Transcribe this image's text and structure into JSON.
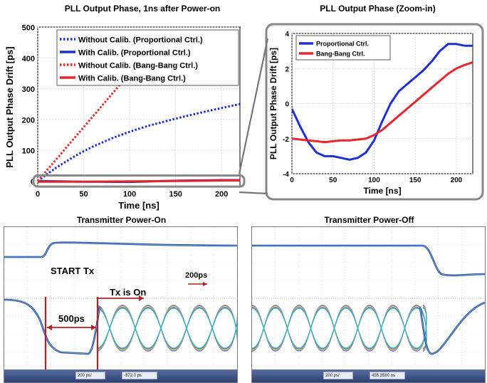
{
  "chart_data": [
    {
      "type": "line",
      "title": "PLL Output Phase, 1ns after Power-on",
      "xlabel": "Time [ns]",
      "ylabel": "PLL Output Phase Drift [ps]",
      "xlim": [
        0,
        220
      ],
      "ylim": [
        -20,
        500
      ],
      "xticks": [
        0,
        50,
        100,
        150,
        200
      ],
      "yticks": [
        0,
        100,
        200,
        300,
        400,
        500
      ],
      "grid": true,
      "legend": "top-left",
      "series": [
        {
          "name": "Without Calib. (Proportional Ctrl.)",
          "color": "#1f2fd6",
          "style": "dotted",
          "x": [
            0,
            10,
            20,
            30,
            40,
            50,
            60,
            80,
            100,
            120,
            140,
            160,
            180,
            200,
            220
          ],
          "y": [
            0,
            22,
            43,
            62,
            80,
            97,
            112,
            138,
            160,
            179,
            195,
            210,
            224,
            237,
            250
          ]
        },
        {
          "name": "With Calib. (Proportional Ctrl.)",
          "color": "#1f2fd6",
          "style": "solid",
          "x": [
            0,
            50,
            100,
            150,
            200,
            220
          ],
          "y": [
            0,
            -2,
            -3,
            1,
            3,
            3
          ]
        },
        {
          "name": "Without Calib. (Bang-Bang Ctrl.)",
          "color": "#e8262a",
          "style": "dotted",
          "x": [
            0,
            20,
            40,
            60,
            80,
            100,
            120,
            130
          ],
          "y": [
            0,
            70,
            140,
            210,
            280,
            350,
            420,
            455
          ]
        },
        {
          "name": "With Calib. (Bang-Bang Ctrl.)",
          "color": "#e8262a",
          "style": "solid",
          "x": [
            0,
            50,
            100,
            150,
            200,
            220
          ],
          "y": [
            -2,
            -2,
            -1,
            0,
            2,
            2
          ]
        }
      ]
    },
    {
      "type": "line",
      "title": "PLL Output Phase (Zoom-in)",
      "xlabel": "Time [ns]",
      "ylabel": "PLL Output Phase Drift [ps]",
      "xlim": [
        0,
        220
      ],
      "ylim": [
        -4,
        4
      ],
      "xticks": [
        0,
        50,
        100,
        150,
        200
      ],
      "yticks": [
        -4,
        -2,
        0,
        2,
        4
      ],
      "grid": true,
      "legend": "top-left",
      "series": [
        {
          "name": "Proportional Ctrl.",
          "color": "#1f2fd6",
          "x": [
            0,
            10,
            20,
            30,
            40,
            50,
            60,
            70,
            80,
            90,
            100,
            110,
            120,
            130,
            140,
            150,
            160,
            170,
            180,
            190,
            200,
            210,
            220
          ],
          "y": [
            -0.3,
            -1.3,
            -2.2,
            -2.8,
            -3.0,
            -3.0,
            -3.1,
            -3.2,
            -3.1,
            -2.8,
            -2.1,
            -1.0,
            0.0,
            0.7,
            1.1,
            1.5,
            1.9,
            2.4,
            3.0,
            3.4,
            3.4,
            3.3,
            3.3
          ]
        },
        {
          "name": "Bang-Bang Ctrl.",
          "color": "#e8262a",
          "x": [
            0,
            10,
            20,
            30,
            40,
            50,
            60,
            70,
            80,
            90,
            100,
            110,
            120,
            130,
            140,
            150,
            160,
            170,
            180,
            190,
            200,
            210,
            220
          ],
          "y": [
            -2.0,
            -2.05,
            -2.1,
            -2.15,
            -2.2,
            -2.15,
            -2.1,
            -2.1,
            -2.05,
            -2.0,
            -1.8,
            -1.5,
            -1.1,
            -0.7,
            -0.3,
            0.1,
            0.5,
            0.9,
            1.3,
            1.7,
            2.0,
            2.2,
            2.35
          ]
        }
      ]
    }
  ],
  "scopes": {
    "left": {
      "title": "Transmitter Power-On",
      "start_label": "START Tx",
      "tx_label": "Tx is On",
      "delay_label": "500ps",
      "scale_label": "200ps",
      "toolbar_values": [
        "200 ps/",
        "-372.0 ps"
      ]
    },
    "right": {
      "title": "Transmitter Power-Off",
      "toolbar_values": [
        "200 ps/",
        "455.3580 ns"
      ]
    }
  }
}
